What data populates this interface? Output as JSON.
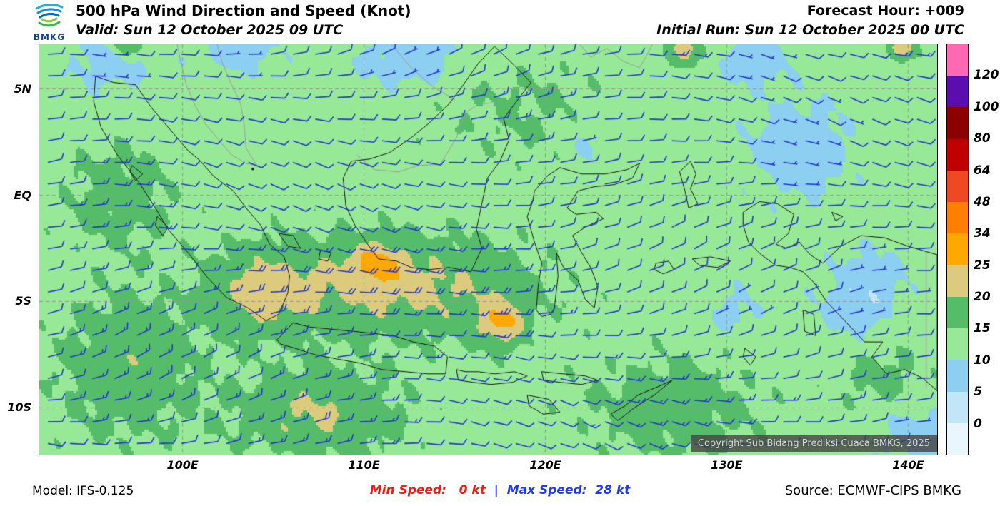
{
  "header": {
    "logo_text": "BMKG",
    "title": "500 hPa Wind Direction and Speed (Knot)",
    "valid": "Valid: Sun 12 October 2025 09 UTC",
    "forecast_hour": "Forecast Hour: +009",
    "initial_run": "Initial Run: Sun 12 October 2025 00 UTC"
  },
  "map": {
    "copyright": "Copyright Sub Bidang Prediksi Cuaca BMKG, 2025",
    "lat_ticks": [
      {
        "label": "5N",
        "lat": 5
      },
      {
        "label": "EQ",
        "lat": 0
      },
      {
        "label": "5S",
        "lat": -5
      },
      {
        "label": "10S",
        "lat": -10
      }
    ],
    "lon_ticks": [
      {
        "label": "100E",
        "lon": 100
      },
      {
        "label": "110E",
        "lon": 110
      },
      {
        "label": "120E",
        "lon": 120
      },
      {
        "label": "130E",
        "lon": 130
      },
      {
        "label": "140E",
        "lon": 140
      }
    ]
  },
  "legend": {
    "labels": [
      "120",
      "100",
      "80",
      "64",
      "48",
      "34",
      "25",
      "20",
      "15",
      "10",
      "5",
      "0"
    ],
    "colors": [
      "#ff69b4",
      "#5c0dad",
      "#8b0000",
      "#c00000",
      "#ef4923",
      "#ff8000",
      "#ffa800",
      "#dccb7c",
      "#55bc69",
      "#97e897",
      "#8ccff0",
      "#c2e6f8",
      "#e9f6fe"
    ]
  },
  "wind_field": {
    "units": "kt",
    "min_speed_kt": 0,
    "max_speed_kt": 28,
    "dominant_flow": "easterly",
    "barb_color": "#2438ce"
  },
  "footer": {
    "model": "Model: IFS-0.125",
    "min_speed": "Min Speed:   0 kt",
    "separator": "  |  ",
    "max_speed": "Max Speed:  28 kt",
    "source": "Source: ECMWF-CIPS BMKG"
  }
}
